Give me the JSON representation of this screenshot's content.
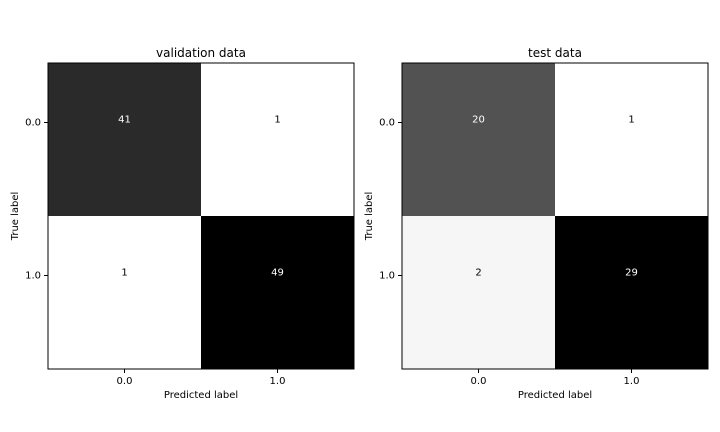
{
  "chart_data": [
    {
      "type": "heatmap",
      "title": "validation data",
      "xlabel": "Predicted label",
      "ylabel": "True label",
      "x_categories": [
        "0.0",
        "1.0"
      ],
      "y_categories": [
        "0.0",
        "1.0"
      ],
      "values": [
        [
          41,
          1
        ],
        [
          1,
          49
        ]
      ],
      "colormap": "grayscale-reversed",
      "grid": false
    },
    {
      "type": "heatmap",
      "title": "test data",
      "xlabel": "Predicted label",
      "ylabel": "True label",
      "x_categories": [
        "0.0",
        "1.0"
      ],
      "y_categories": [
        "0.0",
        "1.0"
      ],
      "values": [
        [
          20,
          1
        ],
        [
          2,
          29
        ]
      ],
      "colormap": "grayscale-reversed",
      "grid": false
    }
  ]
}
